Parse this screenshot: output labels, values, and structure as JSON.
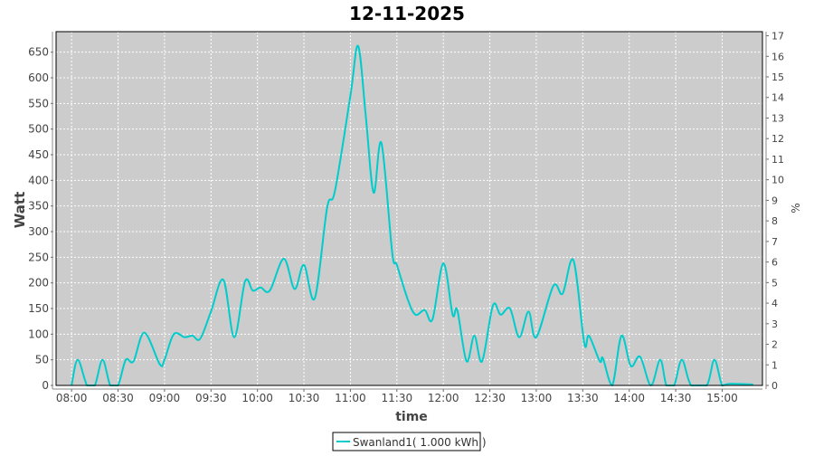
{
  "chart_data": {
    "type": "line",
    "title": "12-11-2025",
    "xlabel": "time",
    "ylabel": "Watt",
    "y2label": "%",
    "xlim": [
      "07:50",
      "15:26"
    ],
    "ylim": [
      0,
      690
    ],
    "y2lim": [
      0,
      17.2
    ],
    "x_ticks": [
      "08:00",
      "08:30",
      "09:00",
      "09:30",
      "10:00",
      "10:30",
      "11:00",
      "11:30",
      "12:00",
      "12:30",
      "13:00",
      "13:30",
      "14:00",
      "14:30",
      "15:00"
    ],
    "y_ticks": [
      0,
      50,
      100,
      150,
      200,
      250,
      300,
      350,
      400,
      450,
      500,
      550,
      600,
      650
    ],
    "y2_ticks": [
      0,
      1,
      2,
      3,
      4,
      5,
      6,
      7,
      8,
      9,
      10,
      11,
      12,
      13,
      14,
      15,
      16,
      17
    ],
    "grid": true,
    "legend_position": "bottom",
    "background": "#cccccc",
    "series": [
      {
        "name": "Swanland1( 1.000 kWh )",
        "color": "#00cccc",
        "points": [
          [
            "08:00",
            0
          ],
          [
            "08:04",
            50
          ],
          [
            "08:10",
            0
          ],
          [
            "08:15",
            0
          ],
          [
            "08:20",
            50
          ],
          [
            "08:25",
            0
          ],
          [
            "08:30",
            0
          ],
          [
            "08:35",
            50
          ],
          [
            "08:40",
            47
          ],
          [
            "08:47",
            103
          ],
          [
            "08:57",
            41
          ],
          [
            "09:00",
            50
          ],
          [
            "09:06",
            100
          ],
          [
            "09:13",
            94
          ],
          [
            "09:18",
            97
          ],
          [
            "09:23",
            91
          ],
          [
            "09:30",
            144
          ],
          [
            "09:38",
            206
          ],
          [
            "09:45",
            94
          ],
          [
            "09:52",
            203
          ],
          [
            "09:57",
            185
          ],
          [
            "10:02",
            191
          ],
          [
            "10:08",
            185
          ],
          [
            "10:17",
            247
          ],
          [
            "10:24",
            188
          ],
          [
            "10:30",
            235
          ],
          [
            "10:37",
            170
          ],
          [
            "10:45",
            347
          ],
          [
            "10:50",
            379
          ],
          [
            "11:00",
            565
          ],
          [
            "11:05",
            662
          ],
          [
            "11:10",
            523
          ],
          [
            "11:15",
            376
          ],
          [
            "11:20",
            473
          ],
          [
            "11:27",
            259
          ],
          [
            "11:30",
            235
          ],
          [
            "11:37",
            168
          ],
          [
            "11:42",
            138
          ],
          [
            "11:48",
            147
          ],
          [
            "11:53",
            129
          ],
          [
            "12:00",
            238
          ],
          [
            "12:06",
            138
          ],
          [
            "12:09",
            147
          ],
          [
            "12:15",
            47
          ],
          [
            "12:20",
            97
          ],
          [
            "12:25",
            47
          ],
          [
            "12:32",
            156
          ],
          [
            "12:37",
            138
          ],
          [
            "12:43",
            150
          ],
          [
            "12:49",
            94
          ],
          [
            "12:55",
            144
          ],
          [
            "13:00",
            94
          ],
          [
            "13:11",
            194
          ],
          [
            "13:17",
            179
          ],
          [
            "13:24",
            244
          ],
          [
            "13:31",
            82
          ],
          [
            "13:34",
            97
          ],
          [
            "13:41",
            47
          ],
          [
            "13:43",
            53
          ],
          [
            "13:49",
            0
          ],
          [
            "13:55",
            97
          ],
          [
            "14:01",
            38
          ],
          [
            "14:07",
            56
          ],
          [
            "14:14",
            0
          ],
          [
            "14:20",
            50
          ],
          [
            "14:24",
            0
          ],
          [
            "14:29",
            0
          ],
          [
            "14:34",
            50
          ],
          [
            "14:40",
            0
          ],
          [
            "14:50",
            0
          ],
          [
            "14:55",
            50
          ],
          [
            "15:00",
            0
          ],
          [
            "15:05",
            3
          ],
          [
            "15:20",
            2
          ]
        ]
      }
    ]
  }
}
